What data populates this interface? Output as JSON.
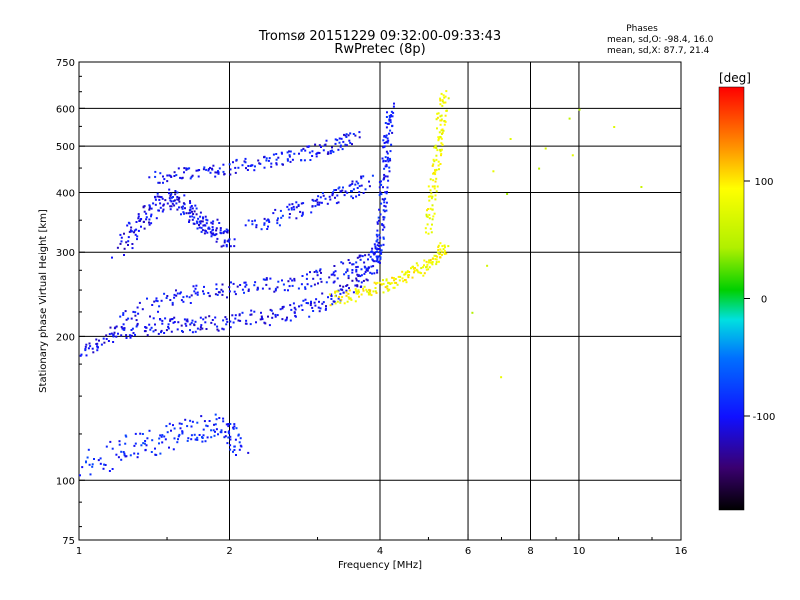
{
  "title_line1": "Tromsø 20151229 09:32:00-09:33:43",
  "title_line2": "RwPretec (8p)",
  "phase_box": {
    "heading": "Phases",
    "line1": "mean, sd,O: -98.4, 16.0",
    "line2": "mean, sd,X:  87.7, 21.4"
  },
  "colorbar": {
    "unit": "[deg]",
    "ticks": [
      {
        "value": 100,
        "label": "100"
      },
      {
        "value": 0,
        "label": "0"
      },
      {
        "value": -100,
        "label": "-100"
      }
    ],
    "range": [
      -180,
      180
    ]
  },
  "chart_data": {
    "type": "scatter",
    "xlabel": "Frequency [MHz]",
    "ylabel": "Stationary phase Virtual Height [km]",
    "xscale": "log",
    "yscale": "log",
    "xlim": [
      1,
      16
    ],
    "ylim": [
      75,
      750
    ],
    "grid": true,
    "x_ticks": [
      {
        "value": 1,
        "label": "1"
      },
      {
        "value": 2,
        "label": "2"
      },
      {
        "value": 4,
        "label": "4"
      },
      {
        "value": 6,
        "label": "6"
      },
      {
        "value": 8,
        "label": "8"
      },
      {
        "value": 10,
        "label": "10"
      },
      {
        "value": 16,
        "label": "16"
      }
    ],
    "x_grid": [
      2,
      4,
      6,
      8,
      10
    ],
    "y_ticks": [
      {
        "value": 75,
        "label": "75"
      },
      {
        "value": 100,
        "label": "100"
      },
      {
        "value": 200,
        "label": "200"
      },
      {
        "value": 300,
        "label": "300"
      },
      {
        "value": 400,
        "label": "400"
      },
      {
        "value": 500,
        "label": "500"
      },
      {
        "value": 600,
        "label": "600"
      },
      {
        "value": 750,
        "label": "750"
      }
    ],
    "y_grid": [
      100,
      200,
      300,
      400,
      500,
      600
    ],
    "trace_groups": [
      {
        "name": "lower-trace",
        "x": [
          1.0,
          1.15,
          1.3,
          1.5,
          1.7,
          2.0,
          2.4,
          2.8,
          3.2,
          3.6,
          3.9
        ],
        "y": [
          185,
          200,
          208,
          212,
          212,
          215,
          220,
          228,
          240,
          260,
          280
        ],
        "phase": -105,
        "jitter": 0.05
      },
      {
        "name": "middle-trace",
        "x": [
          1.2,
          1.5,
          1.8,
          2.2,
          2.7,
          3.2,
          3.7,
          4.0
        ],
        "y": [
          215,
          240,
          248,
          252,
          260,
          270,
          285,
          300
        ],
        "phase": -100,
        "jitter": 0.05
      },
      {
        "name": "vertical-cusp",
        "x": [
          3.95,
          4.0,
          4.05,
          4.1,
          4.15,
          4.2
        ],
        "y": [
          280,
          320,
          380,
          450,
          520,
          600
        ],
        "phase": -95,
        "jitter": 0.04
      },
      {
        "name": "upper-trace",
        "x": [
          1.4,
          1.7,
          2.0,
          2.4,
          2.8,
          3.2,
          3.6
        ],
        "y": [
          430,
          440,
          450,
          465,
          480,
          500,
          520
        ],
        "phase": -100,
        "jitter": 0.04
      },
      {
        "name": "upper-mid-trace",
        "x": [
          2.2,
          2.6,
          3.0,
          3.4,
          3.8
        ],
        "y": [
          340,
          360,
          380,
          400,
          420
        ],
        "phase": -98,
        "jitter": 0.05
      },
      {
        "name": "left-hump",
        "x": [
          1.2,
          1.3,
          1.4,
          1.5,
          1.6,
          1.7,
          1.8,
          1.9,
          2.0
        ],
        "y": [
          300,
          340,
          370,
          390,
          380,
          360,
          340,
          330,
          320
        ],
        "phase": -105,
        "jitter": 0.06
      },
      {
        "name": "low-echoes",
        "x": [
          1.0,
          1.2,
          1.4,
          1.6,
          1.8,
          2.0,
          2.1
        ],
        "y": [
          105,
          115,
          120,
          125,
          130,
          128,
          120
        ],
        "phase": -90,
        "jitter": 0.08
      },
      {
        "name": "x-mode-lower",
        "x": [
          3.2,
          3.6,
          4.0,
          4.4,
          4.8,
          5.2,
          5.4
        ],
        "y": [
          240,
          245,
          255,
          265,
          275,
          290,
          310
        ],
        "phase": 90,
        "jitter": 0.04
      },
      {
        "name": "x-mode-cusp",
        "x": [
          5.0,
          5.1,
          5.2,
          5.3,
          5.4
        ],
        "y": [
          330,
          400,
          480,
          560,
          640
        ],
        "phase": 85,
        "jitter": 0.04
      },
      {
        "name": "sporadic",
        "x": [
          6.5,
          6.6,
          7.0,
          8.5,
          9.6,
          10.8,
          13.0
        ],
        "y": [
          180,
          300,
          490,
          480,
          460,
          610,
          400
        ],
        "phase": 60,
        "jitter": 0.15
      }
    ]
  }
}
